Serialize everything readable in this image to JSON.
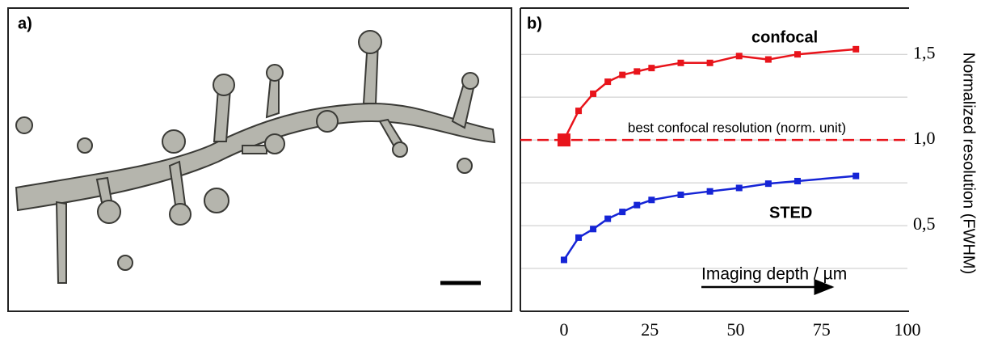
{
  "panel_a": {
    "label": "a)"
  },
  "chart_data": {
    "type": "line",
    "panel_label": "b)",
    "y_label": "Normalized resolution (FWHM)",
    "x_annotation": "Imaging depth / µm",
    "xlim": [
      -12.7,
      100
    ],
    "xticks": [
      0,
      25,
      50,
      75,
      100
    ],
    "ylim": [
      0,
      1.77
    ],
    "yticks": [
      {
        "value": 0.5,
        "label": "0,5"
      },
      {
        "value": 1.0,
        "label": "1,0"
      },
      {
        "value": 1.5,
        "label": "1,5"
      }
    ],
    "minor_yticks": [
      0.25,
      0.75,
      1.25
    ],
    "grid": true,
    "reference_line": {
      "value": 1.0,
      "label": "best confocal resolution (norm. unit)",
      "color": "#e8141b"
    },
    "series": [
      {
        "name": "confocal",
        "color": "#e8141b",
        "x": [
          0,
          4.25,
          8.5,
          12.75,
          17,
          21.25,
          25.5,
          34,
          42.5,
          51,
          59.5,
          68,
          85
        ],
        "values": [
          1.0,
          1.17,
          1.27,
          1.34,
          1.38,
          1.4,
          1.42,
          1.45,
          1.45,
          1.49,
          1.47,
          1.5,
          1.53
        ]
      },
      {
        "name": "STED",
        "color": "#1524d6",
        "x": [
          0,
          4.25,
          8.5,
          12.75,
          17,
          21.25,
          25.5,
          34,
          42.5,
          51,
          59.5,
          68,
          85
        ],
        "values": [
          0.3,
          0.43,
          0.48,
          0.54,
          0.58,
          0.62,
          0.65,
          0.68,
          0.7,
          0.72,
          0.745,
          0.76,
          0.79
        ]
      }
    ]
  }
}
